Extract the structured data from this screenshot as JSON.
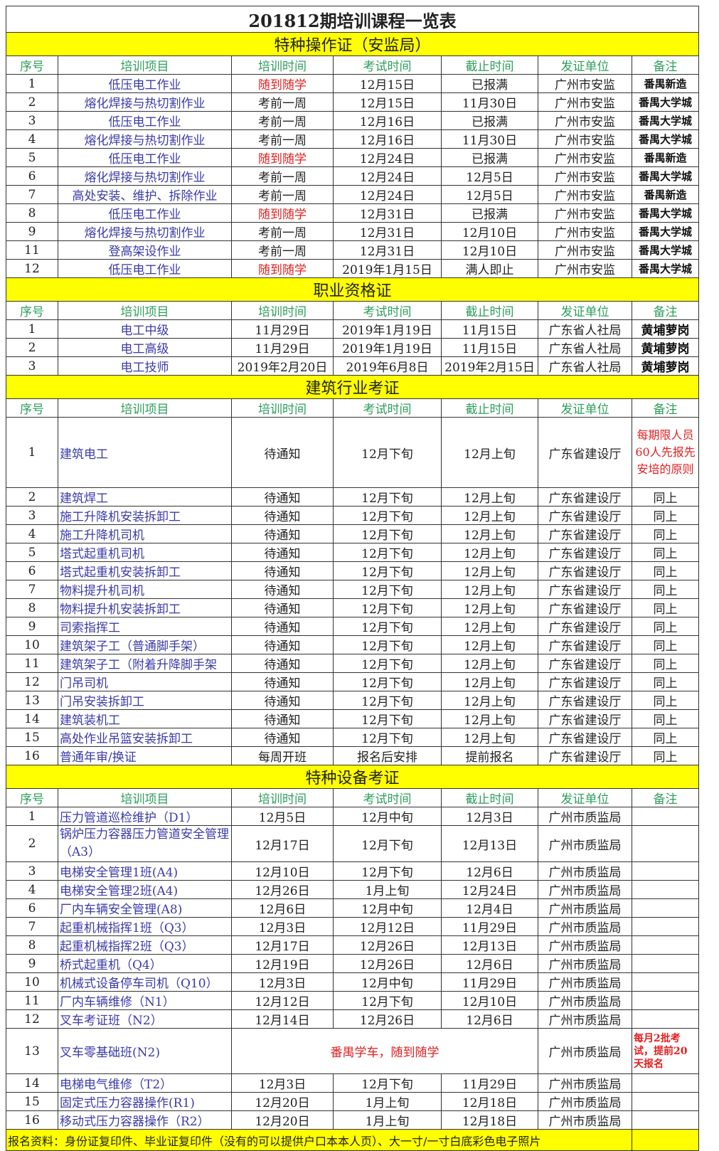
{
  "title": "201812期培训课程一览表",
  "headers": [
    "序号",
    "培训项目",
    "培训时间",
    "考试时间",
    "截止时间",
    "发证单位",
    "备注"
  ],
  "colors": {
    "section_bg": "#ffff00",
    "header_text": "#2e9e5b",
    "item_text": "#3a3aa8",
    "highlight": "#e02020"
  },
  "sections": [
    {
      "name": "特种操作证（安监局）",
      "rows": [
        {
          "cells": [
            "1",
            "低压电工作业",
            "随到随学",
            "12月15日",
            "已报满",
            "广州市安监",
            "番禺新造"
          ],
          "red_train": true
        },
        {
          "cells": [
            "2",
            "熔化焊接与热切割作业",
            "考前一周",
            "12月15日",
            "11月30日",
            "广州市安监",
            "番禺大学城"
          ]
        },
        {
          "cells": [
            "3",
            "低压电工作业",
            "考前一周",
            "12月16日",
            "已报满",
            "广州市安监",
            "番禺大学城"
          ]
        },
        {
          "cells": [
            "4",
            "熔化焊接与热切割作业",
            "考前一周",
            "12月16日",
            "11月30日",
            "广州市安监",
            "番禺大学城"
          ]
        },
        {
          "cells": [
            "5",
            "低压电工作业",
            "随到随学",
            "12月24日",
            "已报满",
            "广州市安监",
            "番禺新造"
          ],
          "red_train": true
        },
        {
          "cells": [
            "6",
            "熔化焊接与热切割作业",
            "考前一周",
            "12月24日",
            "12月5日",
            "广州市安监",
            "番禺大学城"
          ]
        },
        {
          "cells": [
            "7",
            "高处安装、维护、拆除作业",
            "考前一周",
            "12月24日",
            "12月5日",
            "广州市安监",
            "番禺新造"
          ]
        },
        {
          "cells": [
            "8",
            "低压电工作业",
            "随到随学",
            "12月31日",
            "已报满",
            "广州市安监",
            "番禺大学城"
          ],
          "red_train": true
        },
        {
          "cells": [
            "9",
            "熔化焊接与热切割作业",
            "考前一周",
            "12月31日",
            "12月10日",
            "广州市安监",
            "番禺大学城"
          ]
        },
        {
          "cells": [
            "11",
            "登高架设作业",
            "考前一周",
            "12月31日",
            "12月10日",
            "广州市安监",
            "番禺大学城"
          ]
        },
        {
          "cells": [
            "12",
            "低压电工作业",
            "随到随学",
            "2019年1月15日",
            "满人即止",
            "广州市安监",
            "番禺大学城"
          ],
          "red_train": true
        }
      ]
    },
    {
      "name": "职业资格证",
      "rows": [
        {
          "cells": [
            "1",
            "电工中级",
            "11月29日",
            "2019年1月19日",
            "11月15日",
            "广东省人社局",
            "黄埔萝岗"
          ]
        },
        {
          "cells": [
            "2",
            "电工高级",
            "11月29日",
            "2019年1月19日",
            "11月15日",
            "广东省人社局",
            "黄埔萝岗"
          ]
        },
        {
          "cells": [
            "3",
            "电工技师",
            "2019年2月20日",
            "2019年6月8日",
            "2019年2月15日",
            "广东省人社局",
            "黄埔萝岗"
          ]
        }
      ]
    },
    {
      "name": "建筑行业考证",
      "rows": [
        {
          "cells": [
            "1",
            "建筑电工",
            "待通知",
            "12月下旬",
            "12月上旬",
            "广东省建设厅",
            "每期限人员60人先报先安培的原则"
          ],
          "tall": true
        },
        {
          "cells": [
            "2",
            "建筑焊工",
            "待通知",
            "12月下旬",
            "12月上旬",
            "广东省建设厅",
            "同上"
          ]
        },
        {
          "cells": [
            "3",
            "施工升降机安装拆卸工",
            "待通知",
            "12月下旬",
            "12月上旬",
            "广东省建设厅",
            "同上"
          ]
        },
        {
          "cells": [
            "4",
            "施工升降机司机",
            "待通知",
            "12月下旬",
            "12月上旬",
            "广东省建设厅",
            "同上"
          ]
        },
        {
          "cells": [
            "5",
            "塔式起重机司机",
            "待通知",
            "12月下旬",
            "12月上旬",
            "广东省建设厅",
            "同上"
          ]
        },
        {
          "cells": [
            "6",
            "塔式起重机安装拆卸工",
            "待通知",
            "12月下旬",
            "12月上旬",
            "广东省建设厅",
            "同上"
          ]
        },
        {
          "cells": [
            "7",
            "物料提升机司机",
            "待通知",
            "12月下旬",
            "12月上旬",
            "广东省建设厅",
            "同上"
          ]
        },
        {
          "cells": [
            "8",
            "物料提升机安装拆卸工",
            "待通知",
            "12月下旬",
            "12月上旬",
            "广东省建设厅",
            "同上"
          ]
        },
        {
          "cells": [
            "9",
            "司索指挥工",
            "待通知",
            "12月下旬",
            "12月上旬",
            "广东省建设厅",
            "同上"
          ]
        },
        {
          "cells": [
            "10",
            "建筑架子工（普通脚手架）",
            "待通知",
            "12月下旬",
            "12月上旬",
            "广东省建设厅",
            "同上"
          ]
        },
        {
          "cells": [
            "11",
            "建筑架子工（附着升降脚手架",
            "待通知",
            "12月下旬",
            "12月上旬",
            "广东省建设厅",
            "同上"
          ]
        },
        {
          "cells": [
            "12",
            "门吊司机",
            "待通知",
            "12月下旬",
            "12月上旬",
            "广东省建设厅",
            "同上"
          ]
        },
        {
          "cells": [
            "13",
            "门吊安装拆卸工",
            "待通知",
            "12月下旬",
            "12月上旬",
            "广东省建设厅",
            "同上"
          ]
        },
        {
          "cells": [
            "14",
            "建筑装机工",
            "待通知",
            "12月下旬",
            "12月上旬",
            "广东省建设厅",
            "同上"
          ]
        },
        {
          "cells": [
            "15",
            "高处作业吊篮安装拆卸工",
            "待通知",
            "12月下旬",
            "12月上旬",
            "广东省建设厅",
            "同上"
          ]
        },
        {
          "cells": [
            "16",
            "普通年审/换证",
            "每周开班",
            "报名后安排",
            "提前报名",
            "广东省建设厅",
            "同上"
          ]
        }
      ]
    },
    {
      "name": "特种设备考证",
      "rows": [
        {
          "cells": [
            "1",
            "压力管道巡检维护（D1）",
            "12月5日",
            "12月中旬",
            "12月3日",
            "广州市质监局",
            ""
          ]
        },
        {
          "cells": [
            "2",
            "锅炉压力容器压力管道安全管理（A3）",
            "12月17日",
            "12月下旬",
            "12月13日",
            "广州市质监局",
            ""
          ],
          "wrap": true
        },
        {
          "cells": [
            "3",
            "电梯安全管理1班(A4)",
            "12月10日",
            "12月下旬",
            "12月6日",
            "广州市质监局",
            ""
          ]
        },
        {
          "cells": [
            "4",
            "电梯安全管理2班(A4)",
            "12月26日",
            "1月上旬",
            "12月24日",
            "广州市质监局",
            ""
          ]
        },
        {
          "cells": [
            "6",
            "厂内车辆安全管理(A8)",
            "12月6日",
            "12月中旬",
            "12月4日",
            "广州市质监局",
            ""
          ]
        },
        {
          "cells": [
            "7",
            "起重机械指挥1班（Q3）",
            "12月3日",
            "12月12日",
            "11月29日",
            "广州市质监局",
            ""
          ]
        },
        {
          "cells": [
            "8",
            "起重机械指挥2班（Q3）",
            "12月17日",
            "12月26日",
            "12月13日",
            "广州市质监局",
            ""
          ]
        },
        {
          "cells": [
            "9",
            "桥式起重机（Q4）",
            "12月19日",
            "12月26日",
            "12月6日",
            "广州市质监局",
            ""
          ]
        },
        {
          "cells": [
            "10",
            "机械式设备停车司机（Q10）",
            "12月3日",
            "12月中旬",
            "11月29日",
            "广州市质监局",
            ""
          ]
        },
        {
          "cells": [
            "11",
            "厂内车辆维修（N1）",
            "12月12日",
            "12月下旬",
            "12月10日",
            "广州市质监局",
            ""
          ]
        },
        {
          "cells": [
            "12",
            "叉车考证班（N2）",
            "12月14日",
            "12月26日",
            "12月6日",
            "广州市质监局",
            ""
          ]
        },
        {
          "cells": [
            "13",
            "叉车零基础班(N2)",
            "番禺学车，随到随学",
            "广州市质监局",
            "每月2批考试，提前20天报名"
          ],
          "merged": true
        },
        {
          "cells": [
            "14",
            "电梯电气维修（T2）",
            "12月3日",
            "12月下旬",
            "11月29日",
            "广州市质监局",
            ""
          ]
        },
        {
          "cells": [
            "15",
            "固定式压力容器操作(R1)",
            "12月20日",
            "1月上旬",
            "12月18日",
            "广州市质监局",
            ""
          ]
        },
        {
          "cells": [
            "16",
            "移动式压力容器操作（R2）",
            "12月20日",
            "1月上旬",
            "12月18日",
            "广州市质监局",
            ""
          ]
        }
      ]
    }
  ],
  "footer": "报名资料：身份证复印件、毕业证复印件（没有的可以提供户口本本人页）、大一寸/一寸白底彩色电子照片"
}
